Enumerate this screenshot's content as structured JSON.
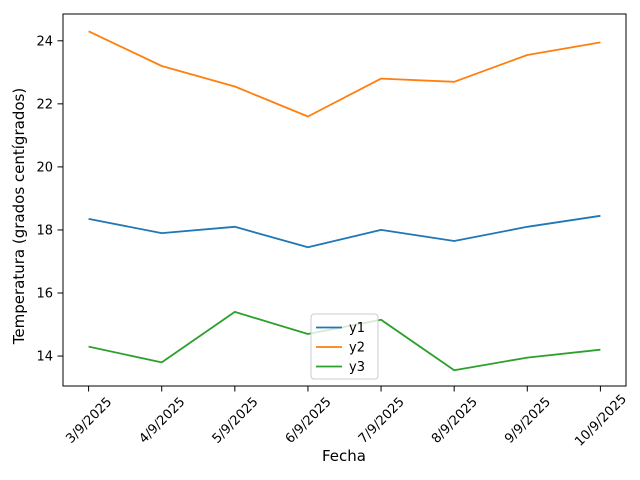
{
  "chart_data": {
    "type": "line",
    "title": "",
    "xlabel": "Fecha",
    "ylabel": "Temperatura (grados centígrados)",
    "categories": [
      "3/9/2025",
      "4/9/2025",
      "5/9/2025",
      "6/9/2025",
      "7/9/2025",
      "8/9/2025",
      "9/9/2025",
      "10/9/2025"
    ],
    "series": [
      {
        "name": "y1",
        "color": "#1f77b4",
        "values": [
          18.35,
          17.9,
          18.1,
          17.45,
          18.0,
          17.65,
          18.1,
          18.45
        ]
      },
      {
        "name": "y2",
        "color": "#ff7f0e",
        "values": [
          24.3,
          23.2,
          22.55,
          21.6,
          22.8,
          22.7,
          23.55,
          23.95
        ]
      },
      {
        "name": "y3",
        "color": "#2ca02c",
        "values": [
          14.3,
          13.8,
          15.4,
          14.7,
          15.15,
          13.55,
          13.95,
          14.2
        ]
      }
    ],
    "y_ticks": [
      14,
      16,
      18,
      20,
      22,
      24
    ],
    "ylim": [
      13.05,
      24.85
    ],
    "xlim": [
      -0.35,
      7.35
    ],
    "x_tick_rotation": 45,
    "grid": false,
    "legend": {
      "position": "lower center",
      "entries": [
        "y1",
        "y2",
        "y3"
      ]
    }
  },
  "colors": {
    "background": "#ffffff",
    "axis": "#000000",
    "tick_text": "#000000",
    "legend_border": "#cccccc",
    "legend_background_alpha": 0.8
  }
}
